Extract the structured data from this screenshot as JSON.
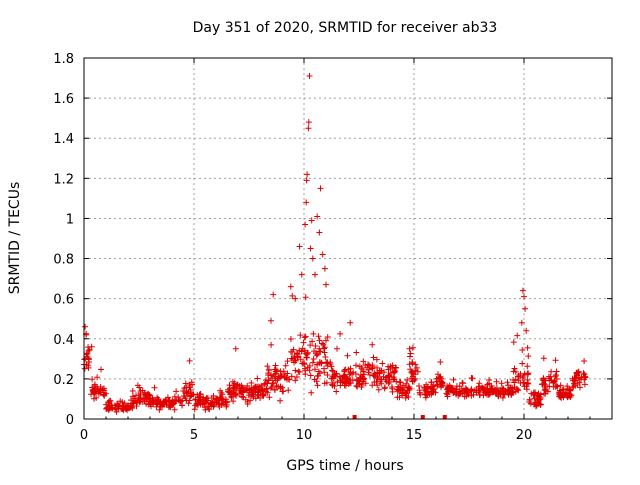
{
  "chart_data": {
    "type": "scatter",
    "title": "Day 351 of 2020, SRMTID for receiver ab33",
    "xlabel": "GPS time / hours",
    "ylabel": "SRMTID / TECUs",
    "xlim": [
      0,
      24
    ],
    "ylim": [
      0,
      1.8
    ],
    "grid": true,
    "marker": "+",
    "series_color": "#e00000",
    "x_ticks": [
      {
        "value": 0,
        "label": "0"
      },
      {
        "value": 5,
        "label": "5"
      },
      {
        "value": 10,
        "label": "10"
      },
      {
        "value": 15,
        "label": "15"
      },
      {
        "value": 20,
        "label": "20"
      }
    ],
    "y_ticks": [
      {
        "value": 0,
        "label": "0"
      },
      {
        "value": 0.2,
        "label": "0.2"
      },
      {
        "value": 0.4,
        "label": "0.4"
      },
      {
        "value": 0.6,
        "label": "0.6"
      },
      {
        "value": 0.8,
        "label": "0.8"
      },
      {
        "value": 1.0,
        "label": "1"
      },
      {
        "value": 1.2,
        "label": "1.2"
      },
      {
        "value": 1.4,
        "label": "1.4"
      },
      {
        "value": 1.6,
        "label": "1.6"
      },
      {
        "value": 1.8,
        "label": "1.8"
      }
    ],
    "data_gaps": [
      12.3,
      15.4,
      16.4
    ],
    "baseline_segments": [
      {
        "x0": 0.0,
        "x1": 0.3,
        "y_mean": 0.3,
        "spread": 0.1
      },
      {
        "x0": 0.3,
        "x1": 1.0,
        "y_mean": 0.14,
        "spread": 0.05
      },
      {
        "x0": 1.0,
        "x1": 2.2,
        "y_mean": 0.06,
        "spread": 0.03
      },
      {
        "x0": 2.2,
        "x1": 3.0,
        "y_mean": 0.1,
        "spread": 0.05
      },
      {
        "x0": 3.0,
        "x1": 4.5,
        "y_mean": 0.08,
        "spread": 0.05
      },
      {
        "x0": 4.5,
        "x1": 5.0,
        "y_mean": 0.13,
        "spread": 0.07
      },
      {
        "x0": 5.0,
        "x1": 6.5,
        "y_mean": 0.09,
        "spread": 0.05
      },
      {
        "x0": 6.5,
        "x1": 7.0,
        "y_mean": 0.14,
        "spread": 0.08
      },
      {
        "x0": 7.0,
        "x1": 8.3,
        "y_mean": 0.13,
        "spread": 0.07
      },
      {
        "x0": 8.3,
        "x1": 9.4,
        "y_mean": 0.2,
        "spread": 0.13
      },
      {
        "x0": 9.4,
        "x1": 10.0,
        "y_mean": 0.3,
        "spread": 0.18
      },
      {
        "x0": 10.0,
        "x1": 11.2,
        "y_mean": 0.3,
        "spread": 0.2
      },
      {
        "x0": 11.2,
        "x1": 12.0,
        "y_mean": 0.2,
        "spread": 0.1
      },
      {
        "x0": 12.0,
        "x1": 14.2,
        "y_mean": 0.22,
        "spread": 0.1
      },
      {
        "x0": 14.2,
        "x1": 14.8,
        "y_mean": 0.14,
        "spread": 0.05
      },
      {
        "x0": 14.8,
        "x1": 15.2,
        "y_mean": 0.24,
        "spread": 0.08
      },
      {
        "x0": 15.2,
        "x1": 16.0,
        "y_mean": 0.14,
        "spread": 0.05
      },
      {
        "x0": 16.0,
        "x1": 16.4,
        "y_mean": 0.18,
        "spread": 0.06
      },
      {
        "x0": 16.4,
        "x1": 19.5,
        "y_mean": 0.14,
        "spread": 0.04
      },
      {
        "x0": 19.5,
        "x1": 20.2,
        "y_mean": 0.2,
        "spread": 0.12
      },
      {
        "x0": 20.2,
        "x1": 20.8,
        "y_mean": 0.1,
        "spread": 0.05
      },
      {
        "x0": 20.8,
        "x1": 21.5,
        "y_mean": 0.18,
        "spread": 0.07
      },
      {
        "x0": 21.5,
        "x1": 22.2,
        "y_mean": 0.13,
        "spread": 0.05
      },
      {
        "x0": 22.2,
        "x1": 22.8,
        "y_mean": 0.2,
        "spread": 0.07
      }
    ],
    "notable_points": [
      {
        "x": 0.05,
        "y": 0.46
      },
      {
        "x": 0.1,
        "y": 0.42
      },
      {
        "x": 0.35,
        "y": 0.36
      },
      {
        "x": 4.8,
        "y": 0.29
      },
      {
        "x": 6.9,
        "y": 0.35
      },
      {
        "x": 8.6,
        "y": 0.62
      },
      {
        "x": 8.5,
        "y": 0.49
      },
      {
        "x": 9.4,
        "y": 0.66
      },
      {
        "x": 9.6,
        "y": 0.6
      },
      {
        "x": 9.8,
        "y": 0.86
      },
      {
        "x": 9.9,
        "y": 0.72
      },
      {
        "x": 10.05,
        "y": 0.97
      },
      {
        "x": 10.1,
        "y": 1.08
      },
      {
        "x": 10.12,
        "y": 1.19
      },
      {
        "x": 10.14,
        "y": 1.22
      },
      {
        "x": 10.2,
        "y": 1.45
      },
      {
        "x": 10.22,
        "y": 1.48
      },
      {
        "x": 10.25,
        "y": 1.71
      },
      {
        "x": 10.3,
        "y": 0.85
      },
      {
        "x": 10.35,
        "y": 0.99
      },
      {
        "x": 10.4,
        "y": 0.8
      },
      {
        "x": 10.5,
        "y": 0.72
      },
      {
        "x": 10.6,
        "y": 1.01
      },
      {
        "x": 10.7,
        "y": 0.93
      },
      {
        "x": 10.75,
        "y": 1.15
      },
      {
        "x": 10.85,
        "y": 0.82
      },
      {
        "x": 10.95,
        "y": 0.75
      },
      {
        "x": 11.0,
        "y": 0.67
      },
      {
        "x": 11.5,
        "y": 0.35
      },
      {
        "x": 12.1,
        "y": 0.48
      },
      {
        "x": 13.1,
        "y": 0.37
      },
      {
        "x": 14.8,
        "y": 0.35
      },
      {
        "x": 19.95,
        "y": 0.64
      },
      {
        "x": 20.0,
        "y": 0.61
      },
      {
        "x": 20.05,
        "y": 0.55
      },
      {
        "x": 19.9,
        "y": 0.48
      },
      {
        "x": 20.1,
        "y": 0.44
      }
    ]
  }
}
